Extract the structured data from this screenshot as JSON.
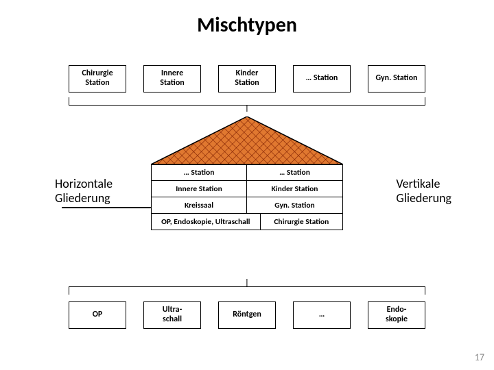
{
  "title": "Mischtypen",
  "top_boxes": [
    "Chirurgie Station",
    "Innere Station",
    "Kinder Station",
    "… Station",
    "Gyn. Station"
  ],
  "bottom_boxes": [
    "OP",
    "Ultra-\nschall",
    "Röntgen",
    "…",
    "Endo-\nskopie"
  ],
  "side_left_l1": "Horizontale",
  "side_left_l2": "Gliederung",
  "side_right_l1": "Vertikale",
  "side_right_l2": "Gliederung",
  "house": {
    "roof_color": "#e07830",
    "roof_hatch_color": "#802000",
    "border_color": "#000000",
    "floors": [
      {
        "cells": [
          "… Station",
          "… Station"
        ],
        "widths": [
          "half",
          "half"
        ]
      },
      {
        "cells": [
          "Innere Station",
          "Kinder Station"
        ],
        "widths": [
          "half",
          "half"
        ]
      },
      {
        "cells": [
          "Kreissaal",
          "Gyn. Station"
        ],
        "widths": [
          "half",
          "half"
        ]
      },
      {
        "cells": [
          "OP, Endoskopie, Ultraschall",
          "Chirurgie Station"
        ],
        "widths": [
          "w40",
          "w60"
        ]
      }
    ]
  },
  "page_number": "17",
  "colors": {
    "background": "#ffffff",
    "text": "#000000",
    "pagenum": "#888888"
  }
}
